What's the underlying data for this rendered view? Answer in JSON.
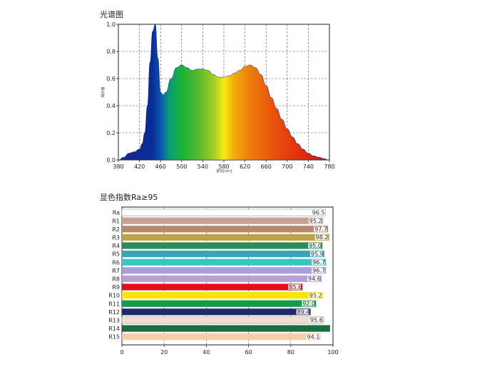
{
  "chart_data": [
    {
      "type": "area",
      "title": "光谱图",
      "xlabel": "波长[nm]",
      "ylabel": "相对值",
      "xlim": [
        380,
        780
      ],
      "ylim": [
        0,
        1.0
      ],
      "x_ticks": [
        "380",
        "420",
        "460",
        "500",
        "540",
        "580",
        "620",
        "660",
        "700",
        "740",
        "780"
      ],
      "y_ticks": [
        "0.0",
        "0.2",
        "0.4",
        "0.6",
        "0.8",
        "1.0"
      ],
      "grid": true,
      "legend": "none",
      "series": [
        {
          "x": [
            380,
            390,
            400,
            410,
            420,
            425,
            430,
            435,
            440,
            445,
            450,
            455,
            460,
            465,
            470,
            480,
            490,
            500,
            510,
            520,
            530,
            540,
            550,
            560,
            570,
            580,
            590,
            600,
            610,
            620,
            630,
            640,
            650,
            660,
            670,
            680,
            690,
            700,
            710,
            720,
            730,
            740,
            750,
            760,
            770,
            778
          ],
          "values": [
            0.0,
            0.02,
            0.05,
            0.06,
            0.08,
            0.12,
            0.2,
            0.4,
            0.72,
            0.95,
            1.0,
            0.75,
            0.5,
            0.48,
            0.5,
            0.6,
            0.68,
            0.7,
            0.68,
            0.66,
            0.67,
            0.67,
            0.66,
            0.63,
            0.61,
            0.61,
            0.62,
            0.64,
            0.66,
            0.69,
            0.7,
            0.68,
            0.63,
            0.55,
            0.46,
            0.38,
            0.3,
            0.23,
            0.17,
            0.12,
            0.08,
            0.05,
            0.03,
            0.02,
            0.01,
            0.0
          ]
        }
      ]
    },
    {
      "type": "bar",
      "orientation": "horizontal",
      "title": "显色指数Ra≥95",
      "xlim": [
        0,
        100
      ],
      "x_ticks": [
        "0",
        "20",
        "40",
        "60",
        "80",
        "100"
      ],
      "grid": true,
      "categories": [
        "Ra",
        "R1",
        "R2",
        "R3",
        "R4",
        "R5",
        "R6",
        "R7",
        "R8",
        "R9",
        "R10",
        "R11",
        "R12",
        "R13",
        "R14",
        "R15"
      ],
      "values": [
        96.5,
        95.2,
        97.7,
        98.2,
        95.0,
        95.9,
        96.7,
        96.7,
        94.6,
        85.6,
        95.2,
        92.0,
        89.4,
        95.6,
        98.6,
        94.1
      ],
      "labels": [
        "96.5",
        "95.2",
        "97.7",
        "98.2",
        "95.0",
        "95.9",
        "96.7",
        "96.7",
        "94.6",
        "85.6",
        "95.2",
        "92.0",
        "89.4",
        "95.6",
        "",
        "94.1"
      ],
      "colors": [
        "#ffffff",
        "#c9a094",
        "#b58a6a",
        "#bfa34a",
        "#2e8a57",
        "#3aa4b8",
        "#3ec3c5",
        "#a79fe0",
        "#b89fd6",
        "#e0101a",
        "#f7e40c",
        "#149a4a",
        "#1e2a6a",
        "#f1dfd2",
        "#1b6c3e",
        "#f5cda8"
      ]
    }
  ]
}
